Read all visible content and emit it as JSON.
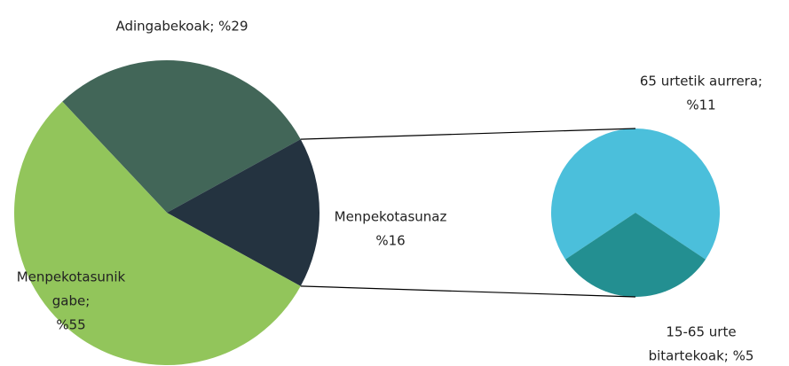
{
  "chart_data": {
    "type": "pie-of-pie",
    "values": [
      29,
      16,
      55
    ],
    "value_labels": [
      [
        "Adingabekoak; %29"
      ],
      [
        "Menpekotasunaz",
        "%16"
      ],
      [
        "Menpekotasunik",
        "gabe;",
        "%55"
      ]
    ],
    "colors": [
      "#426658",
      "#243340",
      "#92c55b"
    ],
    "secondary_values": [
      11,
      5
    ],
    "secondary_value_labels": [
      [
        "65 urtetik aurrera;",
        "%11"
      ],
      [
        "15-65 urte",
        "bitartekoak; %5"
      ]
    ],
    "secondary_colors": [
      "#4bbfdb",
      "#238f91"
    ]
  }
}
